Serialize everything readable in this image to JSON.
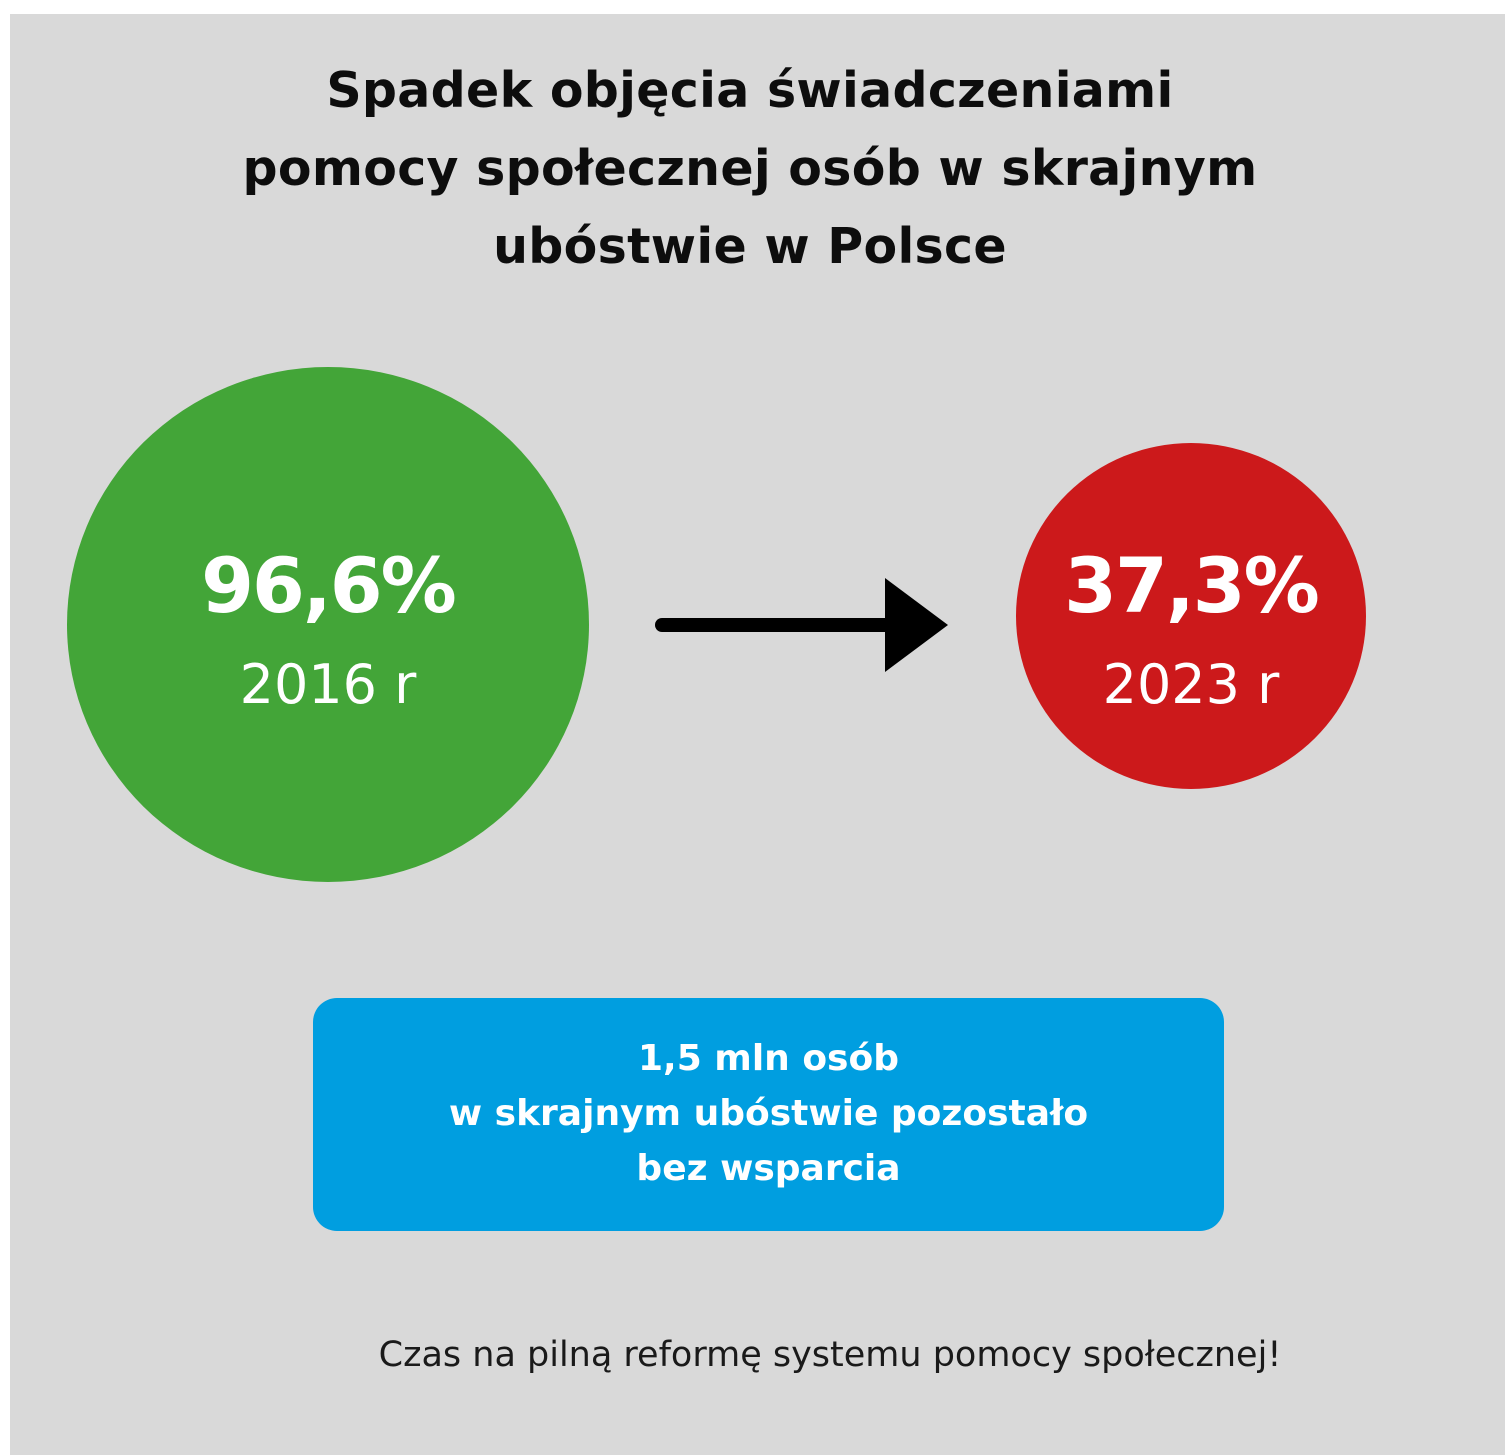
{
  "title": {
    "line1": "Spadek objęcia świadczeniami",
    "line2": "pomocy społecznej osób w skrajnym",
    "line3": "ubóstwie w Polsce"
  },
  "before": {
    "percent": "96,6%",
    "year": "2016 r",
    "color": "#43a538"
  },
  "after": {
    "percent": "37,3%",
    "year": "2023 r",
    "color": "#cc191b"
  },
  "arrow_icon": "right-arrow-icon",
  "banner": {
    "line1": "1,5 mln osób",
    "line2": "w skrajnym ubóstwie pozostało",
    "line3": "bez wsparcia",
    "color": "#009ee0"
  },
  "footer": {
    "text": "Czas na pilną reformę systemu pomocy społecznej!"
  }
}
